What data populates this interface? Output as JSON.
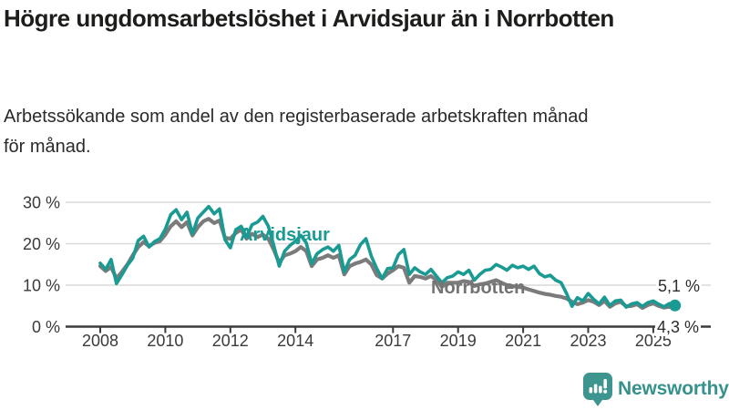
{
  "header": {
    "title": "Högre ungdomsarbetslöshet i Arvidsjaur än i Norrbotten",
    "subtitle": "Arbetssökande som andel av den registerbaserade arbetskraften månad för månad."
  },
  "colors": {
    "arvidsjaur": "#199a92",
    "norrbotten": "#7b7b7b",
    "grid": "#d9d9d9",
    "axis": "#3b3b3b",
    "axis_text": "#3a3a3a",
    "title_text": "#1d1d1b",
    "brand": "#35928c",
    "background": "#ffffff"
  },
  "chart_data": {
    "type": "line",
    "title": "Högre ungdomsarbetslöshet i Arvidsjaur än i Norrbotten",
    "subtitle": "Arbetssökande som andel av den registerbaserade arbetskraften månad för månad.",
    "unit": "%",
    "grid": "horizontal",
    "legend_position": "inline-labels",
    "ylim": [
      0,
      30
    ],
    "xlim": [
      2008,
      2025.9
    ],
    "x_start_year": 2008,
    "points_per_year": 6,
    "x_tick_years": [
      2008,
      2010,
      2012,
      2014,
      2017,
      2019,
      2021,
      2023,
      2025
    ],
    "x_tick_labels": [
      "2008",
      "2010",
      "2012",
      "2014",
      "2017",
      "2019",
      "2021",
      "2023",
      "2025"
    ],
    "y_tick_values": [
      30,
      20,
      10,
      0
    ],
    "y_tick_labels": [
      "30 %",
      "20 %",
      "10 %",
      "0 %"
    ],
    "series": [
      {
        "name": "Arvidsjaur",
        "color": "#199a92",
        "end_label": "5,1 %",
        "end_value": 5.1,
        "end_dot": true,
        "values": [
          15.3,
          13.8,
          16.2,
          10.4,
          12.5,
          14.8,
          16.5,
          20.8,
          21.8,
          19.2,
          20.5,
          21.2,
          23.5,
          27.0,
          28.2,
          25.8,
          27.6,
          22.4,
          26.2,
          27.6,
          29.0,
          27.2,
          28.4,
          21.0,
          19.0,
          23.4,
          24.2,
          21.6,
          24.6,
          25.2,
          26.6,
          24.2,
          19.6,
          14.6,
          18.2,
          19.6,
          20.6,
          22.0,
          20.2,
          15.2,
          17.6,
          18.6,
          19.2,
          18.2,
          19.6,
          13.2,
          16.2,
          17.2,
          19.8,
          21.2,
          17.0,
          14.0,
          11.6,
          14.0,
          14.2,
          17.4,
          18.6,
          12.6,
          14.2,
          13.2,
          12.6,
          13.8,
          12.2,
          10.6,
          11.8,
          12.2,
          13.2,
          12.6,
          13.6,
          11.2,
          12.6,
          13.6,
          13.8,
          15.0,
          14.4,
          13.6,
          14.8,
          14.2,
          14.6,
          13.8,
          14.6,
          12.8,
          12.0,
          12.4,
          11.2,
          10.6,
          8.0,
          4.9,
          7.0,
          6.2,
          8.0,
          6.6,
          5.5,
          7.1,
          5.1,
          6.2,
          6.4,
          4.7,
          5.5,
          5.8,
          4.9,
          5.8,
          6.2,
          5.4,
          4.8,
          5.6,
          5.1
        ]
      },
      {
        "name": "Norrbotten",
        "color": "#7b7b7b",
        "end_label": "4,3 %",
        "end_value": 4.3,
        "end_dot": false,
        "values": [
          14.6,
          13.4,
          14.4,
          11.6,
          13.2,
          15.0,
          17.2,
          19.2,
          20.4,
          19.4,
          20.2,
          20.6,
          22.2,
          24.2,
          25.4,
          24.0,
          25.2,
          22.0,
          24.0,
          25.4,
          26.0,
          25.0,
          25.6,
          21.4,
          21.2,
          22.6,
          23.4,
          21.2,
          22.4,
          21.6,
          22.2,
          21.2,
          18.6,
          15.4,
          17.2,
          17.6,
          18.2,
          19.2,
          18.2,
          14.6,
          16.2,
          16.6,
          17.2,
          16.6,
          17.2,
          12.6,
          14.6,
          15.2,
          15.6,
          16.2,
          15.0,
          12.4,
          11.6,
          12.8,
          13.6,
          14.6,
          14.2,
          10.6,
          12.2,
          12.0,
          11.6,
          12.2,
          11.2,
          9.6,
          10.6,
          10.6,
          10.6,
          11.0,
          10.8,
          9.8,
          10.2,
          10.4,
          10.8,
          11.2,
          10.6,
          10.0,
          9.8,
          9.6,
          9.4,
          9.0,
          8.6,
          8.2,
          7.9,
          7.7,
          7.4,
          7.2,
          6.8,
          6.0,
          5.4,
          5.8,
          6.4,
          6.0,
          5.2,
          6.2,
          4.8,
          5.6,
          6.0,
          4.9,
          5.0,
          5.4,
          4.5,
          5.2,
          5.6,
          5.0,
          4.6,
          4.8,
          4.3
        ]
      }
    ]
  },
  "footer": {
    "brand": "Newsworthy"
  }
}
